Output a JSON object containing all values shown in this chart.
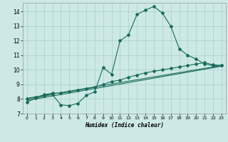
{
  "xlabel": "Humidex (Indice chaleur)",
  "bg_color": "#cce9e5",
  "grid_color": "#aacfcc",
  "line_color": "#1a6b5a",
  "xlim": [
    -0.5,
    23.5
  ],
  "ylim": [
    7,
    14.6
  ],
  "xticks": [
    0,
    1,
    2,
    3,
    4,
    5,
    6,
    7,
    8,
    9,
    10,
    11,
    12,
    13,
    14,
    15,
    16,
    17,
    18,
    19,
    20,
    21,
    22,
    23
  ],
  "yticks": [
    7,
    8,
    9,
    10,
    11,
    12,
    13,
    14
  ],
  "line1_x": [
    0,
    1,
    2,
    3,
    4,
    5,
    6,
    7,
    8,
    9,
    10,
    11,
    12,
    13,
    14,
    15,
    16,
    17,
    18,
    19,
    20,
    21,
    22,
    23
  ],
  "line1_y": [
    7.8,
    8.05,
    8.2,
    8.3,
    7.6,
    7.55,
    7.7,
    8.25,
    8.5,
    10.15,
    9.7,
    12.0,
    12.4,
    13.8,
    14.1,
    14.35,
    13.9,
    13.0,
    11.45,
    11.0,
    10.75,
    10.4,
    10.3,
    10.3
  ],
  "line2_x": [
    0,
    1,
    2,
    3,
    4,
    5,
    6,
    7,
    8,
    9,
    10,
    11,
    12,
    13,
    14,
    15,
    16,
    17,
    18,
    19,
    20,
    21,
    22,
    23
  ],
  "line2_y": [
    8.0,
    8.1,
    8.3,
    8.4,
    8.4,
    8.5,
    8.6,
    8.7,
    8.8,
    9.0,
    9.2,
    9.3,
    9.5,
    9.65,
    9.8,
    9.9,
    10.0,
    10.1,
    10.2,
    10.3,
    10.4,
    10.5,
    10.35,
    10.3
  ],
  "line3_x": [
    0,
    23
  ],
  "line3_y": [
    7.9,
    10.25
  ],
  "line4_x": [
    0,
    23
  ],
  "line4_y": [
    8.05,
    10.3
  ]
}
